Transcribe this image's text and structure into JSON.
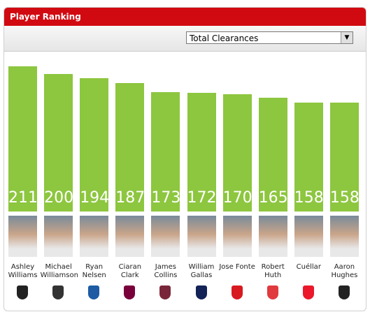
{
  "chart_data": {
    "type": "bar",
    "title": "Player Ranking",
    "selector": "Total Clearances",
    "categories": [
      "Ashley Williams",
      "Michael Williamson",
      "Ryan Nelsen",
      "Ciaran Clark",
      "James Collins",
      "William Gallas",
      "Jose Fonte",
      "Robert Huth",
      "Cuéllar",
      "Aaron Hughes"
    ],
    "values": [
      211,
      200,
      194,
      187,
      173,
      172,
      170,
      165,
      158,
      158
    ],
    "color": "#8dc63f"
  }
}
